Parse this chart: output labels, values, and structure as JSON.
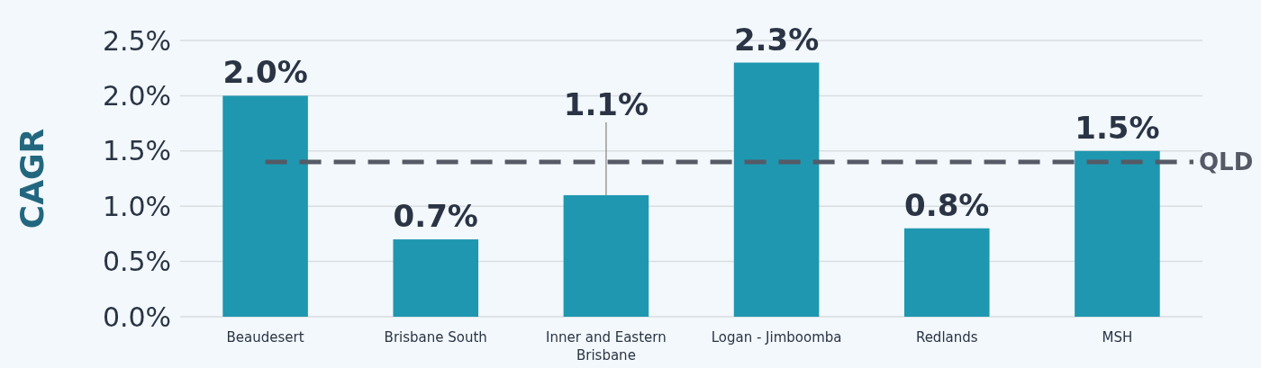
{
  "chart_data": {
    "type": "bar",
    "ylabel": "CAGR",
    "categories": [
      "Beaudesert",
      "Brisbane South",
      "Inner and Eastern Brisbane",
      "Logan - Jimboomba",
      "Redlands",
      "MSH"
    ],
    "values": [
      2.0,
      0.7,
      1.1,
      2.3,
      0.8,
      1.5
    ],
    "color": "#1f97b0",
    "value_labels": [
      "2.0%",
      "0.7%",
      "1.1%",
      "2.3%",
      "0.8%",
      "1.5%"
    ],
    "ylim": [
      0,
      2.5
    ],
    "yticks": [
      {
        "value": 0,
        "label": "0.0%"
      },
      {
        "value": 0.5,
        "label": "0.5%"
      },
      {
        "value": 1,
        "label": "1.0%"
      },
      {
        "value": 1.5,
        "label": "1.5%"
      },
      {
        "value": 2,
        "label": "2.0%"
      },
      {
        "value": 2.5,
        "label": "2.5%"
      }
    ],
    "grid": "y",
    "ref_lines": [
      {
        "axis": "y",
        "value": 1.4,
        "label": "QLD",
        "color": "#555a66",
        "line_style": "dashed"
      }
    ]
  }
}
